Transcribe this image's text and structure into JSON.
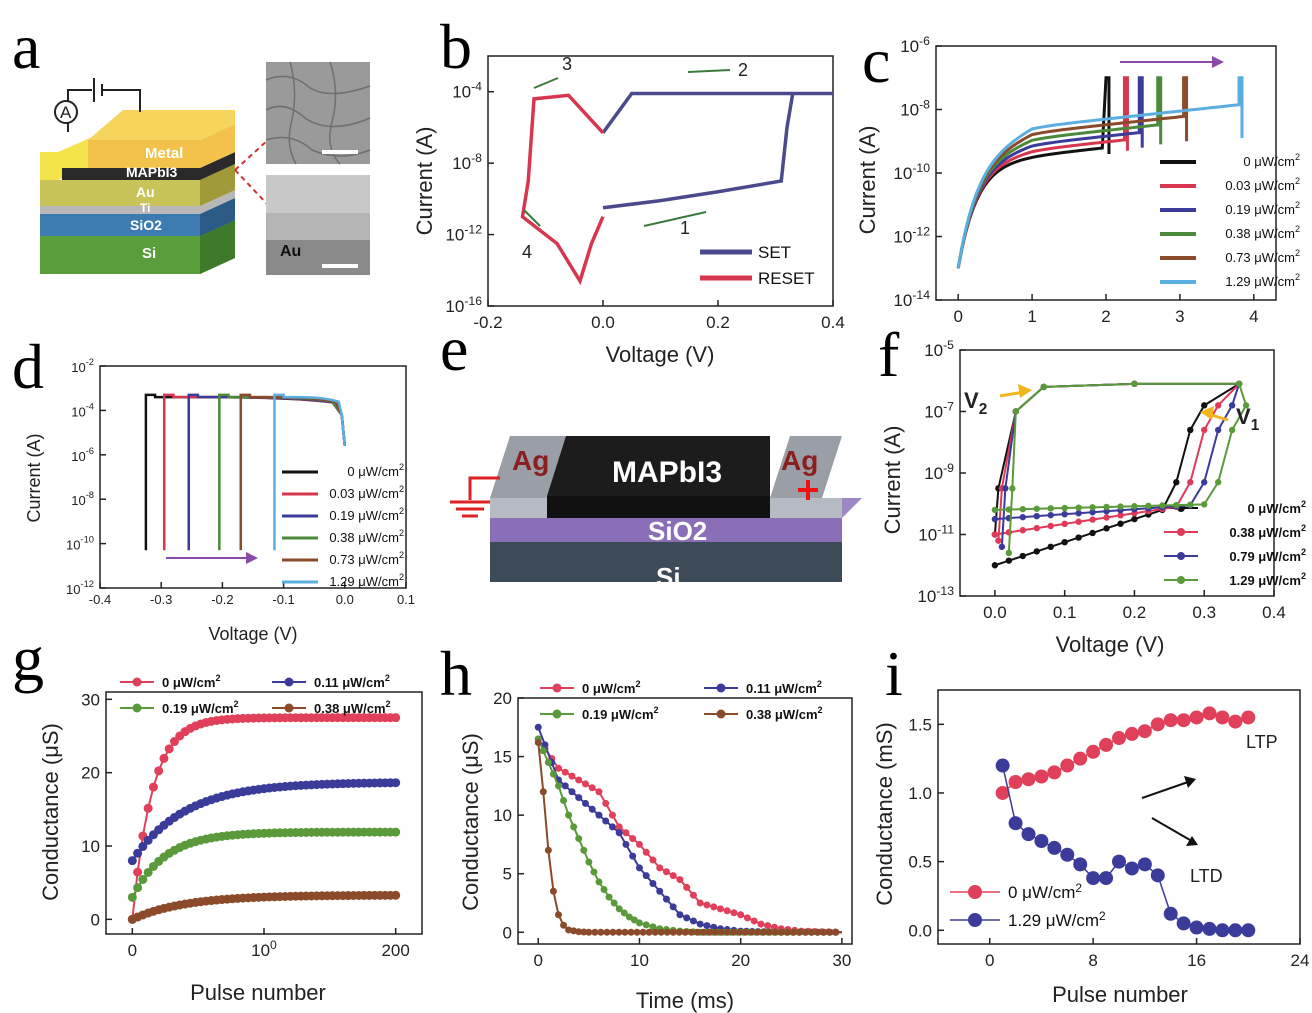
{
  "panels": {
    "a": {
      "letter": "a",
      "ammeter": "A",
      "layers": [
        "Metal",
        "MAPbI3",
        "Au",
        "Ti",
        "SiO2",
        "Si"
      ],
      "sem_label": "Au"
    },
    "e": {
      "letter": "e",
      "left_electrode": "Ag",
      "right_electrode": "Ag",
      "layers": [
        "MAPbI3",
        "SiO2",
        "Si"
      ]
    }
  },
  "chart_data": [
    {
      "panel": "b",
      "type": "line",
      "xlabel": "Voltage (V)",
      "ylabel": "Current (A)",
      "xlim": [
        -0.2,
        0.4
      ],
      "ylim_log10": [
        -16,
        -2
      ],
      "xticks": [
        "-0.2",
        "0.0",
        "0.2",
        "0.4"
      ],
      "yticks": [
        "10-16",
        "10-12",
        "10-8",
        "10-4"
      ],
      "annotations": [
        "1",
        "2",
        "3",
        "4"
      ],
      "series": [
        {
          "name": "SET",
          "color": "#4a4a8c",
          "points": [
            [
              0.0,
              -10.5
            ],
            [
              0.1,
              -10.1
            ],
            [
              0.2,
              -9.6
            ],
            [
              0.31,
              -9.0
            ],
            [
              0.32,
              -6
            ],
            [
              0.33,
              -4.1
            ],
            [
              0.4,
              -4.1
            ],
            [
              0.05,
              -4.1
            ],
            [
              0.0,
              -6.3
            ]
          ]
        },
        {
          "name": "RESET",
          "color": "#d7364e",
          "points": [
            [
              0.0,
              -6.3
            ],
            [
              -0.06,
              -4.2
            ],
            [
              -0.12,
              -4.4
            ],
            [
              -0.13,
              -9
            ],
            [
              -0.14,
              -11
            ],
            [
              -0.08,
              -12.5
            ],
            [
              -0.04,
              -14.6
            ],
            [
              -0.02,
              -12.5
            ],
            [
              0.0,
              -11
            ]
          ]
        }
      ]
    },
    {
      "panel": "c",
      "type": "line",
      "xlim": [
        0,
        4
      ],
      "ylim_log10": [
        -14,
        -6
      ],
      "ylabel": "Current (A)",
      "xticks": [
        "0",
        "1",
        "2",
        "3",
        "4"
      ],
      "yticks": [
        "10-14",
        "10-12",
        "10-10",
        "10-8",
        "10-6"
      ],
      "series": [
        {
          "name": "0 μW/cm2",
          "color": "#111111",
          "switch_v": 2.0
        },
        {
          "name": "0.03 μW/cm2",
          "color": "#d7364e",
          "switch_v": 2.25
        },
        {
          "name": "0.19 μW/cm2",
          "color": "#3b3b9a",
          "switch_v": 2.45
        },
        {
          "name": "0.38 μW/cm2",
          "color": "#4a8a3a",
          "switch_v": 2.7
        },
        {
          "name": "0.73 μW/cm2",
          "color": "#8b4a2a",
          "switch_v": 3.05
        },
        {
          "name": "1.29 μW/cm2",
          "color": "#5aaee0",
          "switch_v": 3.8
        }
      ]
    },
    {
      "panel": "d",
      "type": "line",
      "xlabel": "Voltage (V)",
      "ylabel": "Current (A)",
      "xlim": [
        -0.4,
        0.1
      ],
      "ylim_log10": [
        -12,
        -2
      ],
      "xticks": [
        "-0.4",
        "-0.3",
        "-0.2",
        "-0.1",
        "0.0",
        "0.1"
      ],
      "yticks": [
        "10-12",
        "10-10",
        "10-8",
        "10-6",
        "10-4",
        "10-2"
      ],
      "series": [
        {
          "name": "0 μW/cm2",
          "color": "#111111",
          "switch_v": -0.32
        },
        {
          "name": "0.03 μW/cm2",
          "color": "#d7364e",
          "switch_v": -0.29
        },
        {
          "name": "0.19 μW/cm2",
          "color": "#3b3b9a",
          "switch_v": -0.25
        },
        {
          "name": "0.38 μW/cm2",
          "color": "#4a8a3a",
          "switch_v": -0.2
        },
        {
          "name": "0.73 μW/cm2",
          "color": "#8b4a2a",
          "switch_v": -0.165
        },
        {
          "name": "1.29 μW/cm2",
          "color": "#5aaee0",
          "switch_v": -0.11
        }
      ]
    },
    {
      "panel": "f",
      "type": "line",
      "xlabel": "Voltage (V)",
      "ylabel": "Current (A)",
      "xlim": [
        -0.05,
        0.4
      ],
      "ylim_log10": [
        -13,
        -5
      ],
      "xticks": [
        "0.0",
        "0.1",
        "0.2",
        "0.3",
        "0.4"
      ],
      "yticks": [
        "10-13",
        "10-11",
        "10-9",
        "10-7",
        "10-5"
      ],
      "annotations": [
        "V2",
        "V1"
      ],
      "series": [
        {
          "name": "0 μW/cm2",
          "color": "#111111",
          "low": -12.0,
          "v1": 0.24,
          "v2": 0.0
        },
        {
          "name": "0.38 μW/cm2",
          "color": "#e03a5a",
          "low": -11.0,
          "v1": 0.26,
          "v2": 0.005
        },
        {
          "name": "0.79 μW/cm2",
          "color": "#3b3b9a",
          "low": -10.5,
          "v1": 0.28,
          "v2": 0.01
        },
        {
          "name": "1.29 μW/cm2",
          "color": "#5a9a3a",
          "low": -10.2,
          "v1": 0.3,
          "v2": 0.02
        }
      ]
    },
    {
      "panel": "g",
      "type": "scatter",
      "xlabel": "Pulse number",
      "ylabel": "Conductance (μS)",
      "xlim": [
        -20,
        220
      ],
      "ylim": [
        -2,
        31
      ],
      "xticks": [
        "0",
        "100",
        "200"
      ],
      "yticks": [
        "0",
        "10",
        "20",
        "30"
      ],
      "series": [
        {
          "name": "0 μW/cm2",
          "color": "#e0405a",
          "start": 0,
          "sat": 27.5,
          "tau": 15
        },
        {
          "name": "0.11 μW/cm2",
          "color": "#3b3b9a",
          "start": 8,
          "sat": 18.7,
          "tau": 40
        },
        {
          "name": "0.19 μW/cm2",
          "color": "#5a9a3a",
          "start": 3,
          "sat": 11.9,
          "tau": 25
        },
        {
          "name": "0.38 μW/cm2",
          "color": "#8b4a2a",
          "start": 0,
          "sat": 3.3,
          "tau": 40
        }
      ]
    },
    {
      "panel": "h",
      "type": "scatter",
      "xlabel": "Time (ms)",
      "ylabel": "Conductance (μS)",
      "xlim": [
        -2,
        31
      ],
      "ylim": [
        -1,
        20
      ],
      "xticks": [
        "0",
        "10",
        "20",
        "30"
      ],
      "yticks": [
        "0",
        "5",
        "10",
        "15",
        "20"
      ],
      "series": [
        {
          "name": "0 μW/cm2",
          "color": "#e0405a",
          "points": [
            [
              0,
              16.5
            ],
            [
              2,
              14
            ],
            [
              4,
              13
            ],
            [
              6,
              12
            ],
            [
              8,
              9
            ],
            [
              10,
              7.5
            ],
            [
              12,
              5.5
            ],
            [
              14,
              4.5
            ],
            [
              16,
              2.5
            ],
            [
              18,
              2
            ],
            [
              20,
              1.5
            ],
            [
              22,
              0.7
            ],
            [
              24,
              0.3
            ],
            [
              26,
              0.1
            ],
            [
              28,
              0.05
            ],
            [
              30,
              0
            ]
          ]
        },
        {
          "name": "0.11 μW/cm2",
          "color": "#3b3b9a",
          "points": [
            [
              0,
              17.5
            ],
            [
              2,
              13
            ],
            [
              4,
              11.5
            ],
            [
              6,
              10
            ],
            [
              8,
              8.5
            ],
            [
              10,
              5.5
            ],
            [
              12,
              3.5
            ],
            [
              14,
              1.5
            ],
            [
              16,
              0.7
            ],
            [
              18,
              0.3
            ],
            [
              20,
              0.1
            ],
            [
              24,
              0
            ],
            [
              30,
              0
            ]
          ]
        },
        {
          "name": "0.19 μW/cm2",
          "color": "#5a9a3a",
          "points": [
            [
              0,
              16.5
            ],
            [
              1,
              14.5
            ],
            [
              2,
              12.5
            ],
            [
              3,
              10
            ],
            [
              4,
              8
            ],
            [
              5,
              6
            ],
            [
              6,
              4.3
            ],
            [
              7,
              3
            ],
            [
              8,
              2
            ],
            [
              9,
              1.3
            ],
            [
              10,
              0.8
            ],
            [
              12,
              0.3
            ],
            [
              14,
              0.1
            ],
            [
              16,
              0
            ],
            [
              30,
              0
            ]
          ]
        },
        {
          "name": "0.38 μW/cm2",
          "color": "#8b4a2a",
          "points": [
            [
              0,
              16.2
            ],
            [
              0.5,
              12
            ],
            [
              1,
              7
            ],
            [
              1.5,
              3.5
            ],
            [
              2,
              1.5
            ],
            [
              2.5,
              0.6
            ],
            [
              3,
              0.2
            ],
            [
              4,
              0.05
            ],
            [
              5,
              0
            ],
            [
              30,
              0
            ]
          ]
        }
      ]
    },
    {
      "panel": "i",
      "type": "scatter",
      "xlabel": "Pulse number",
      "ylabel": "Conductance (mS)",
      "xlim": [
        -4,
        24
      ],
      "ylim": [
        -0.1,
        1.75
      ],
      "xticks": [
        "0",
        "8",
        "16",
        "24"
      ],
      "yticks": [
        "0.0",
        "0.5",
        "1.0",
        "1.5"
      ],
      "annotations": [
        "LTP",
        "LTD"
      ],
      "series": [
        {
          "name": "0 μW/cm2",
          "color": "#e0405a",
          "points": [
            [
              1,
              1.0
            ],
            [
              2,
              1.08
            ],
            [
              3,
              1.1
            ],
            [
              4,
              1.12
            ],
            [
              5,
              1.15
            ],
            [
              6,
              1.2
            ],
            [
              7,
              1.25
            ],
            [
              8,
              1.3
            ],
            [
              9,
              1.35
            ],
            [
              10,
              1.4
            ],
            [
              11,
              1.43
            ],
            [
              12,
              1.45
            ],
            [
              13,
              1.5
            ],
            [
              14,
              1.53
            ],
            [
              15,
              1.53
            ],
            [
              16,
              1.55
            ],
            [
              17,
              1.58
            ],
            [
              18,
              1.55
            ],
            [
              19,
              1.52
            ],
            [
              20,
              1.55
            ]
          ]
        },
        {
          "name": "1.29 μW/cm2",
          "color": "#3b3b9a",
          "points": [
            [
              1,
              1.2
            ],
            [
              2,
              0.78
            ],
            [
              3,
              0.7
            ],
            [
              4,
              0.65
            ],
            [
              5,
              0.6
            ],
            [
              6,
              0.55
            ],
            [
              7,
              0.48
            ],
            [
              8,
              0.38
            ],
            [
              9,
              0.38
            ],
            [
              10,
              0.5
            ],
            [
              11,
              0.45
            ],
            [
              12,
              0.48
            ],
            [
              13,
              0.4
            ],
            [
              14,
              0.12
            ],
            [
              15,
              0.05
            ],
            [
              16,
              0.02
            ],
            [
              17,
              0.01
            ],
            [
              18,
              0.0
            ],
            [
              19,
              0.0
            ],
            [
              20,
              0.0
            ]
          ]
        }
      ]
    }
  ]
}
